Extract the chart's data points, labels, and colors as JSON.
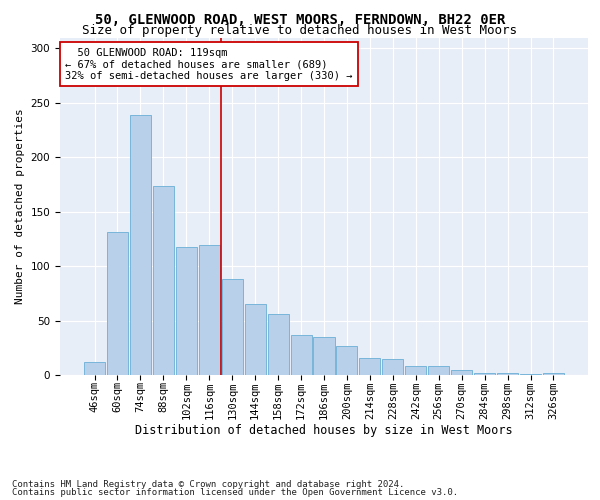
{
  "title1": "50, GLENWOOD ROAD, WEST MOORS, FERNDOWN, BH22 0ER",
  "title2": "Size of property relative to detached houses in West Moors",
  "xlabel": "Distribution of detached houses by size in West Moors",
  "ylabel": "Number of detached properties",
  "categories": [
    "46sqm",
    "60sqm",
    "74sqm",
    "88sqm",
    "102sqm",
    "116sqm",
    "130sqm",
    "144sqm",
    "158sqm",
    "172sqm",
    "186sqm",
    "200sqm",
    "214sqm",
    "228sqm",
    "242sqm",
    "256sqm",
    "270sqm",
    "284sqm",
    "298sqm",
    "312sqm",
    "326sqm"
  ],
  "values": [
    12,
    131,
    239,
    174,
    118,
    119,
    88,
    65,
    56,
    37,
    35,
    27,
    16,
    15,
    8,
    8,
    5,
    2,
    2,
    1,
    2
  ],
  "bar_color": "#b8d0ea",
  "bar_edge_color": "#6aaed6",
  "vline_x_index": 5,
  "vline_color": "#cc0000",
  "annotation_text": "  50 GLENWOOD ROAD: 119sqm\n← 67% of detached houses are smaller (689)\n32% of semi-detached houses are larger (330) →",
  "annotation_box_color": "#ffffff",
  "annotation_box_edge": "#cc0000",
  "ylim": [
    0,
    310
  ],
  "yticks": [
    0,
    50,
    100,
    150,
    200,
    250,
    300
  ],
  "footer1": "Contains HM Land Registry data © Crown copyright and database right 2024.",
  "footer2": "Contains public sector information licensed under the Open Government Licence v3.0.",
  "plot_bg_color": "#e8eef7",
  "title1_fontsize": 10,
  "title2_fontsize": 9,
  "xlabel_fontsize": 8.5,
  "ylabel_fontsize": 8,
  "tick_fontsize": 7.5,
  "footer_fontsize": 6.5,
  "annotation_fontsize": 7.5
}
